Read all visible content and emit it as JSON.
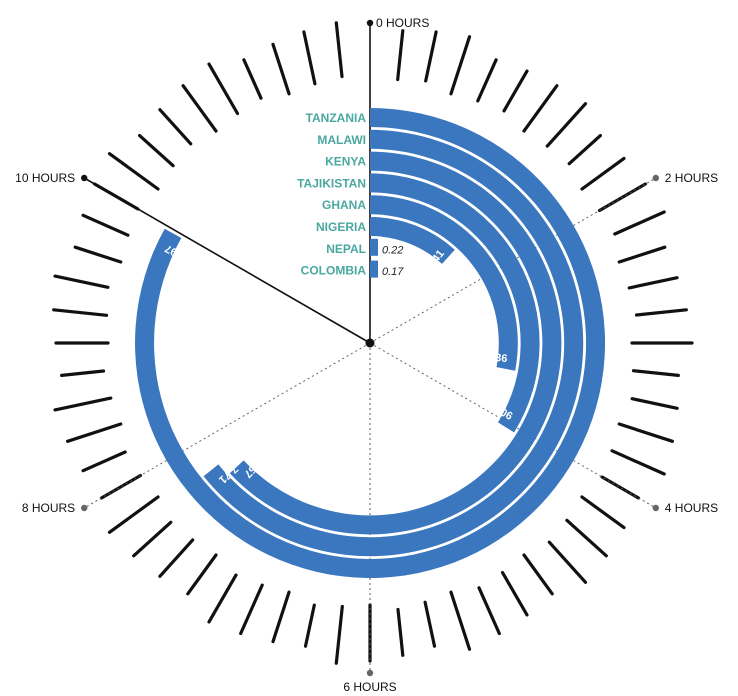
{
  "chart_data": {
    "type": "radial-bar",
    "max_hours": 12,
    "colors": {
      "bar": "#3a77be",
      "label": "#4aa8a0",
      "axis": "#111111",
      "ray": "#555555"
    },
    "axis_ticks": [
      {
        "hours": 0,
        "label": "0 HOURS"
      },
      {
        "hours": 2,
        "label": "2 HOURS"
      },
      {
        "hours": 4,
        "label": "4 HOURS"
      },
      {
        "hours": 6,
        "label": "6 HOURS"
      },
      {
        "hours": 8,
        "label": "8 HOURS"
      },
      {
        "hours": 10,
        "label": "10 HOURS"
      }
    ],
    "categories": [
      "TANZANIA",
      "MALAWI",
      "KENYA",
      "TAJIKISTAN",
      "GHANA",
      "NIGERIA",
      "NEPAL",
      "COLOMBIA"
    ],
    "values": [
      9.97,
      7.71,
      7.57,
      4.06,
      3.36,
      1.41,
      0.22,
      0.17
    ],
    "value_labels": [
      "9.97",
      "7.71",
      "7.57",
      "4.06",
      "3.36",
      "1.41",
      "0.22",
      "0.17"
    ]
  }
}
